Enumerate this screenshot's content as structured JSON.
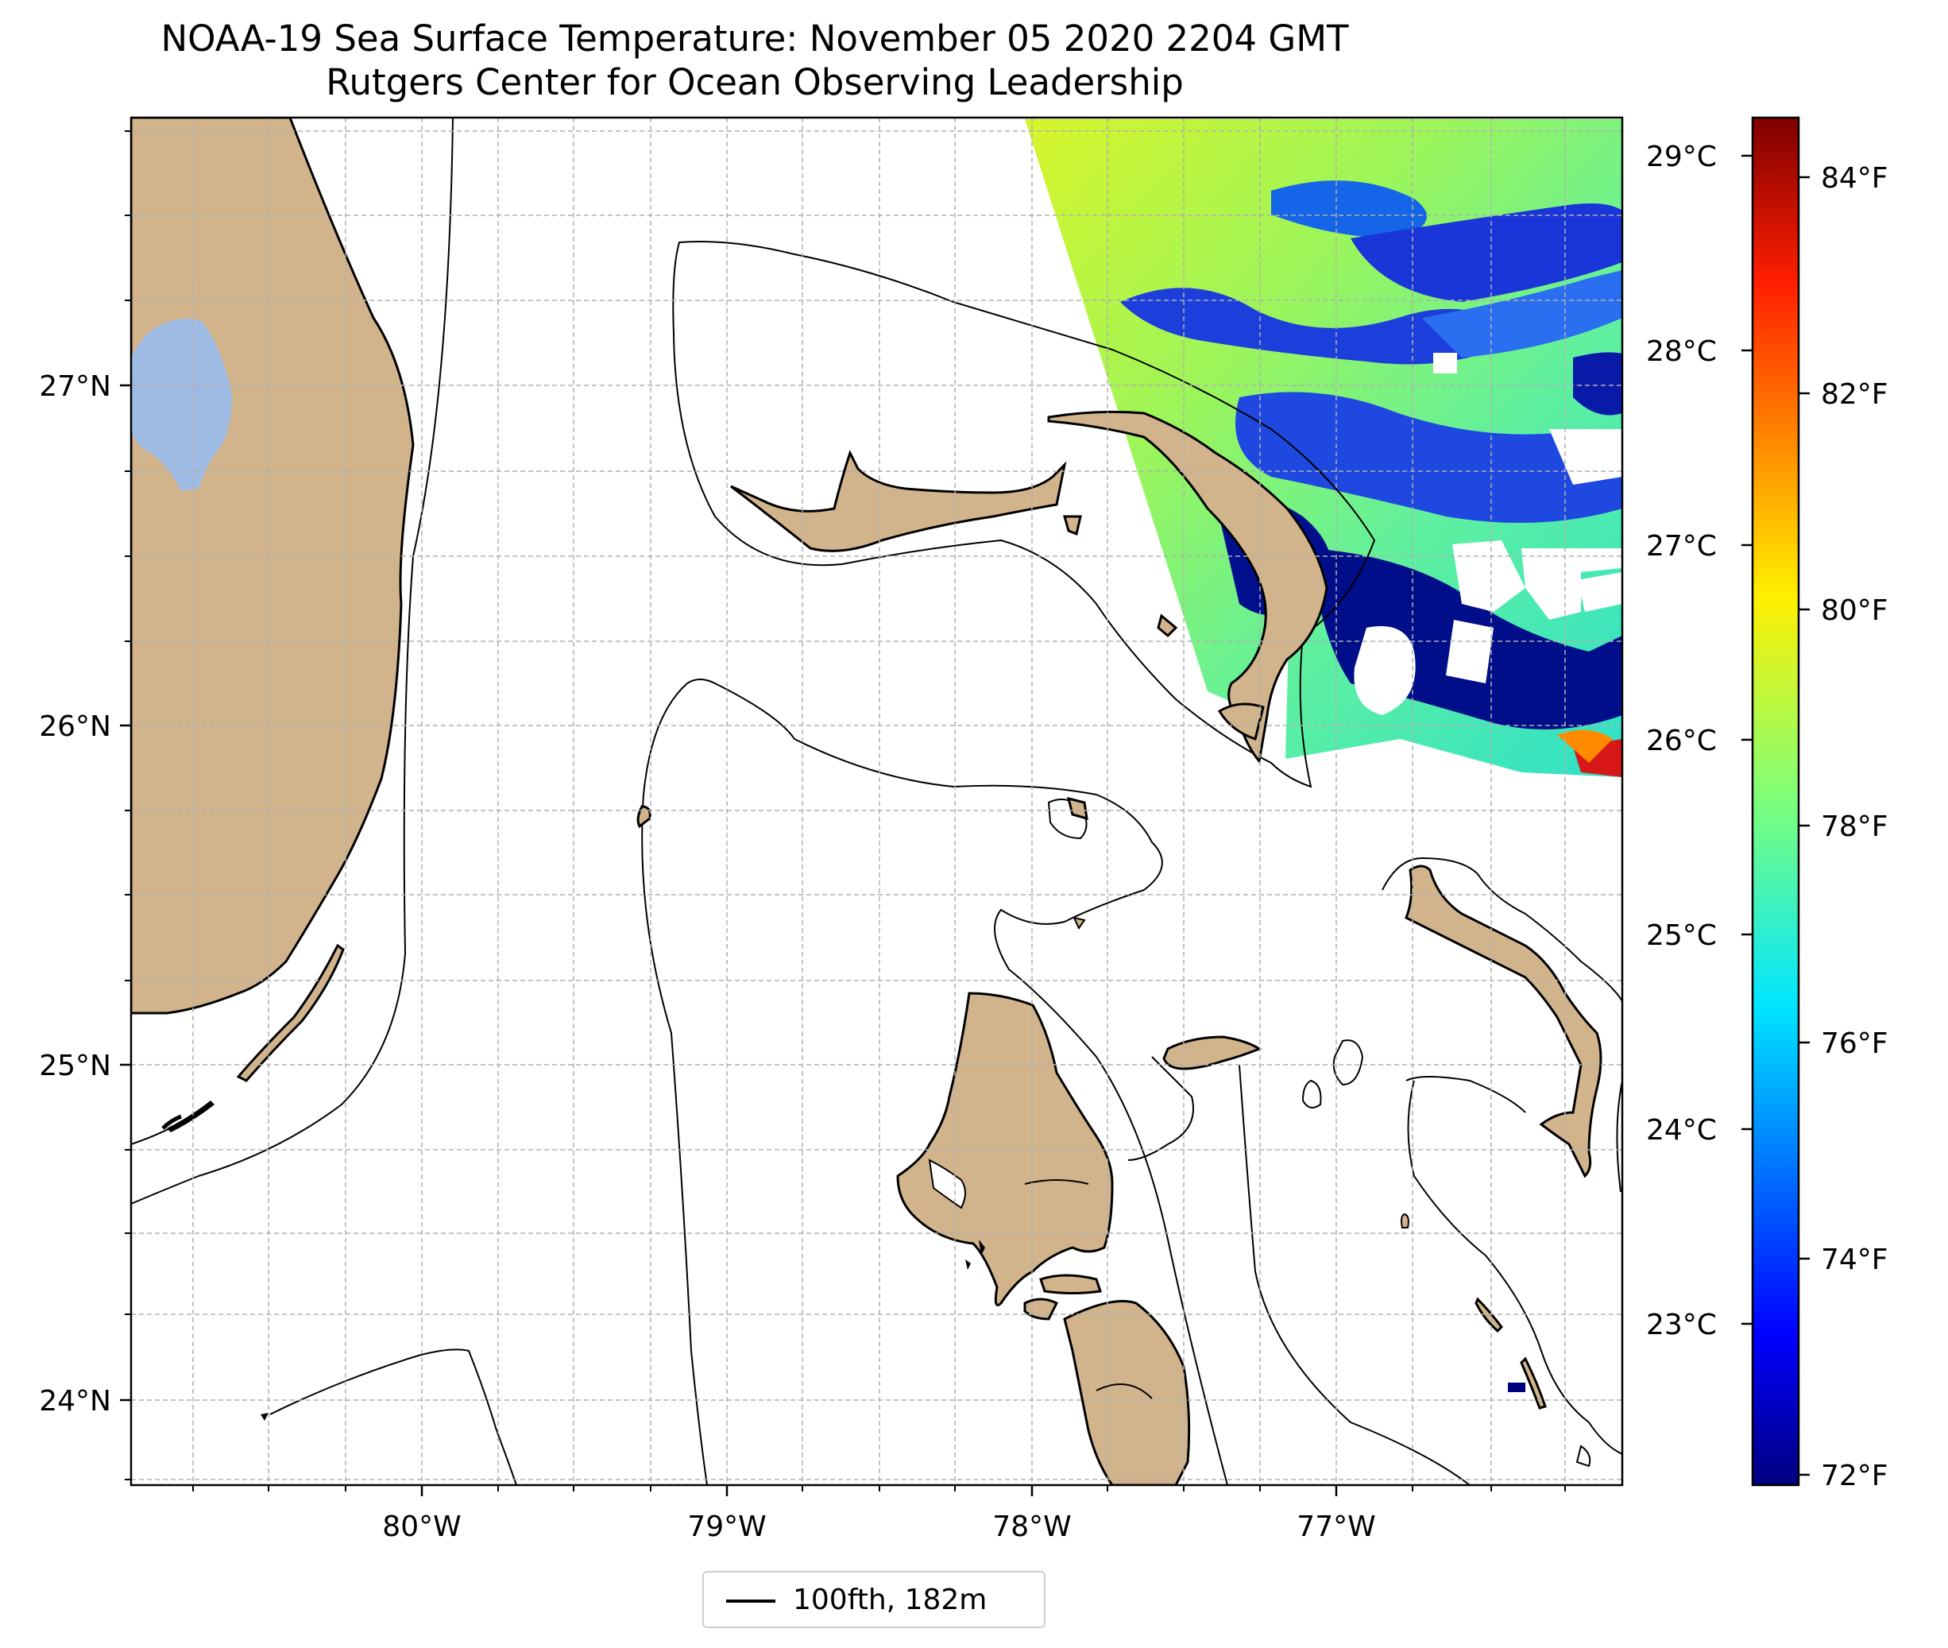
{
  "title": {
    "line1": "NOAA-19 Sea Surface Temperature: November 05 2020 2204 GMT",
    "line2": "Rutgers Center for Ocean Observing Leadership"
  },
  "map": {
    "lon_range": [
      -80.96,
      -76.1
    ],
    "lat_range": [
      23.75,
      27.8
    ],
    "x_ticks": [
      {
        "lon": -80,
        "label": "80°W"
      },
      {
        "lon": -79,
        "label": "79°W"
      },
      {
        "lon": -78,
        "label": "78°W"
      },
      {
        "lon": -77,
        "label": "77°W"
      }
    ],
    "y_ticks": [
      {
        "lat": 27,
        "label": "27°N"
      },
      {
        "lat": 26,
        "label": "26°N"
      },
      {
        "lat": 25,
        "label": "25°N"
      },
      {
        "lat": 24,
        "label": "24°N"
      }
    ],
    "grid": "dashed",
    "land_color": "#d2b48c",
    "lake_color": "#9dbbe3",
    "lake_name": "Lake Okeechobee",
    "features": [
      "Florida coast",
      "Grand Bahama",
      "Abaco",
      "Andros",
      "Eleuthera",
      "New Providence",
      "Berry Islands",
      "Exuma Cays"
    ]
  },
  "colorbar": {
    "colormap": "jet",
    "range_c": [
      22.2,
      29.4
    ],
    "celsius_ticks": [
      {
        "value": 29,
        "label": "29°C"
      },
      {
        "value": 28,
        "label": "28°C"
      },
      {
        "value": 27,
        "label": "27°C"
      },
      {
        "value": 26,
        "label": "26°C"
      },
      {
        "value": 25,
        "label": "25°C"
      },
      {
        "value": 24,
        "label": "24°C"
      },
      {
        "value": 23,
        "label": "23°C"
      }
    ],
    "fahrenheit_ticks": [
      {
        "value": 84,
        "label": "84°F"
      },
      {
        "value": 82,
        "label": "82°F"
      },
      {
        "value": 80,
        "label": "80°F"
      },
      {
        "value": 78,
        "label": "78°F"
      },
      {
        "value": 76,
        "label": "76°F"
      },
      {
        "value": 74,
        "label": "74°F"
      },
      {
        "value": 72,
        "label": "72°F"
      }
    ]
  },
  "legend": {
    "label": "100fth, 182m",
    "color": "#000000"
  }
}
